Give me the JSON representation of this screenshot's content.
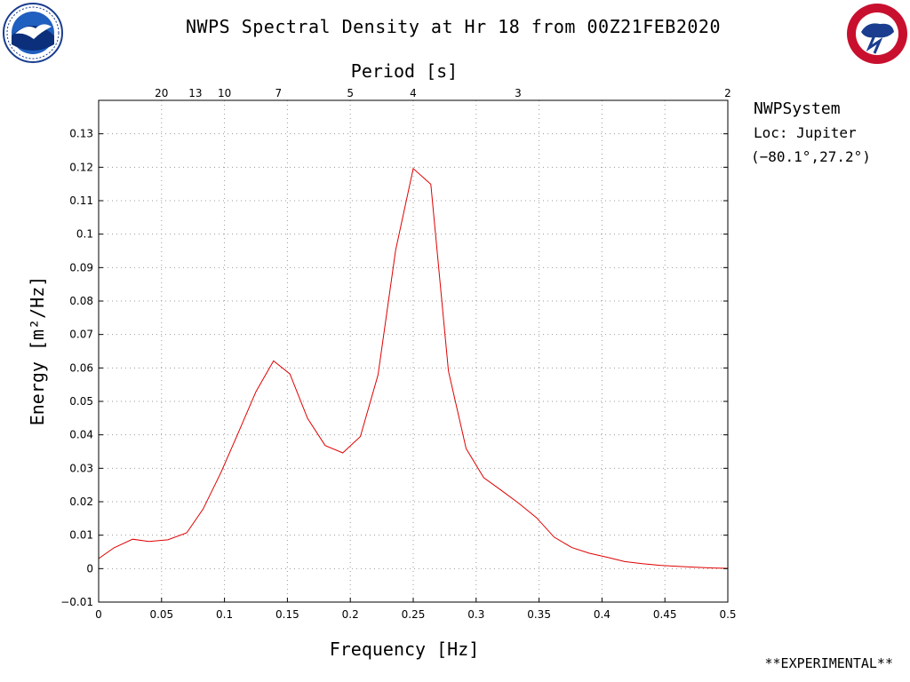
{
  "title": "NWPS Spectral Density at Hr 18 from 00Z21FEB2020",
  "logos": {
    "left": "noaa-logo",
    "right": "nws-logo"
  },
  "side_info": {
    "system": "NWPSystem",
    "location": "Loc: Jupiter",
    "coords": "(−80.1°,27.2°)"
  },
  "footer": "**EXPERIMENTAL**",
  "colors": {
    "series": "#e00000",
    "grid": "#9a9a9a",
    "axis": "#000000"
  },
  "chart_data": {
    "type": "line",
    "title": "NWPS Spectral Density at Hr 18 from 00Z21FEB2020",
    "xlabel": "Frequency [Hz]",
    "ylabel": "Energy [m²/Hz]",
    "top_axis_label": "Period [s]",
    "xlim": [
      0,
      0.5
    ],
    "ylim": [
      -0.01,
      0.14
    ],
    "x_ticks": [
      0,
      0.05,
      0.1,
      0.15,
      0.2,
      0.25,
      0.3,
      0.35,
      0.4,
      0.45,
      0.5
    ],
    "y_ticks": [
      -0.01,
      0,
      0.01,
      0.02,
      0.03,
      0.04,
      0.05,
      0.06,
      0.07,
      0.08,
      0.09,
      0.1,
      0.11,
      0.12,
      0.13
    ],
    "period_ticks": [
      20,
      13,
      10,
      7,
      5,
      4,
      3,
      2
    ],
    "grid": true,
    "series": [
      {
        "x": [
          0,
          0.012,
          0.027,
          0.04,
          0.055,
          0.07,
          0.083,
          0.097,
          0.11,
          0.125,
          0.139,
          0.152,
          0.166,
          0.18,
          0.194,
          0.208,
          0.222,
          0.236,
          0.25,
          0.264,
          0.278,
          0.292,
          0.306,
          0.32,
          0.334,
          0.348,
          0.362,
          0.376,
          0.39,
          0.404,
          0.418,
          0.432,
          0.446,
          0.46,
          0.474,
          0.488,
          0.5
        ],
        "y": [
          0.003,
          0.0062,
          0.0088,
          0.0081,
          0.0086,
          0.0107,
          0.0178,
          0.0286,
          0.0398,
          0.0529,
          0.0621,
          0.0582,
          0.0449,
          0.0368,
          0.0346,
          0.0395,
          0.0579,
          0.0952,
          0.1196,
          0.1149,
          0.0591,
          0.0359,
          0.0272,
          0.0234,
          0.0195,
          0.0152,
          0.0094,
          0.0063,
          0.0046,
          0.0034,
          0.0021,
          0.0015,
          0.001,
          0.0007,
          0.0004,
          0.0002,
          0.0001
        ]
      }
    ]
  }
}
